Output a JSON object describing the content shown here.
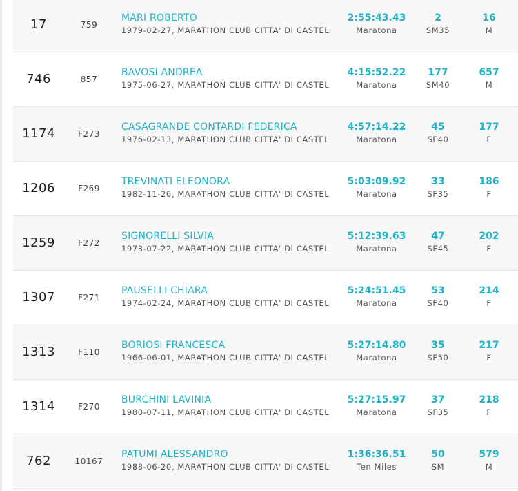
{
  "results": [
    {
      "position": "17",
      "bib": "759",
      "name": "MARI ROBERTO",
      "info": "1979-02-27, MARATHON CLUB CITTA' DI CASTEL",
      "time": "2:55:43.43",
      "race": "Maratona",
      "cat_rank": "2",
      "category": "SM35",
      "sex_rank": "16",
      "sex": "M"
    },
    {
      "position": "746",
      "bib": "857",
      "name": "BAVOSI ANDREA",
      "info": "1975-06-27, MARATHON CLUB CITTA' DI CASTEL",
      "time": "4:15:52.22",
      "race": "Maratona",
      "cat_rank": "177",
      "category": "SM40",
      "sex_rank": "657",
      "sex": "M"
    },
    {
      "position": "1174",
      "bib": "F273",
      "name": "CASAGRANDE CONTARDI FEDERICA",
      "info": "1976-02-13, MARATHON CLUB CITTA' DI CASTEL",
      "time": "4:57:14.22",
      "race": "Maratona",
      "cat_rank": "45",
      "category": "SF40",
      "sex_rank": "177",
      "sex": "F"
    },
    {
      "position": "1206",
      "bib": "F269",
      "name": "TREVINATI ELEONORA",
      "info": "1982-11-26, MARATHON CLUB CITTA' DI CASTEL",
      "time": "5:03:09.92",
      "race": "Maratona",
      "cat_rank": "33",
      "category": "SF35",
      "sex_rank": "186",
      "sex": "F"
    },
    {
      "position": "1259",
      "bib": "F272",
      "name": "SIGNORELLI SILVIA",
      "info": "1973-07-22, MARATHON CLUB CITTA' DI CASTEL",
      "time": "5:12:39.63",
      "race": "Maratona",
      "cat_rank": "47",
      "category": "SF45",
      "sex_rank": "202",
      "sex": "F"
    },
    {
      "position": "1307",
      "bib": "F271",
      "name": "PAUSELLI CHIARA",
      "info": "1974-02-24, MARATHON CLUB CITTA' DI CASTEL",
      "time": "5:24:51.45",
      "race": "Maratona",
      "cat_rank": "53",
      "category": "SF40",
      "sex_rank": "214",
      "sex": "F"
    },
    {
      "position": "1313",
      "bib": "F110",
      "name": "BORIOSI FRANCESCA",
      "info": "1966-06-01, MARATHON CLUB CITTA' DI CASTEL",
      "time": "5:27:14.80",
      "race": "Maratona",
      "cat_rank": "35",
      "category": "SF50",
      "sex_rank": "217",
      "sex": "F"
    },
    {
      "position": "1314",
      "bib": "F270",
      "name": "BURCHINI LAVINIA",
      "info": "1980-07-11, MARATHON CLUB CITTA' DI CASTEL",
      "time": "5:27:15.97",
      "race": "Maratona",
      "cat_rank": "37",
      "category": "SF35",
      "sex_rank": "218",
      "sex": "F"
    },
    {
      "position": "762",
      "bib": "10167",
      "name": "PATUMI ALESSANDRO",
      "info": "1988-06-20, MARATHON CLUB CITTA' DI CASTEL",
      "time": "1:36:36.51",
      "race": "Ten Miles",
      "cat_rank": "50",
      "category": "SM",
      "sex_rank": "579",
      "sex": "M"
    }
  ],
  "colors": {
    "accent": "#1fb3c8",
    "row_alt": "#f7f7f7",
    "text": "#1f1f1f",
    "muted": "#555555"
  }
}
